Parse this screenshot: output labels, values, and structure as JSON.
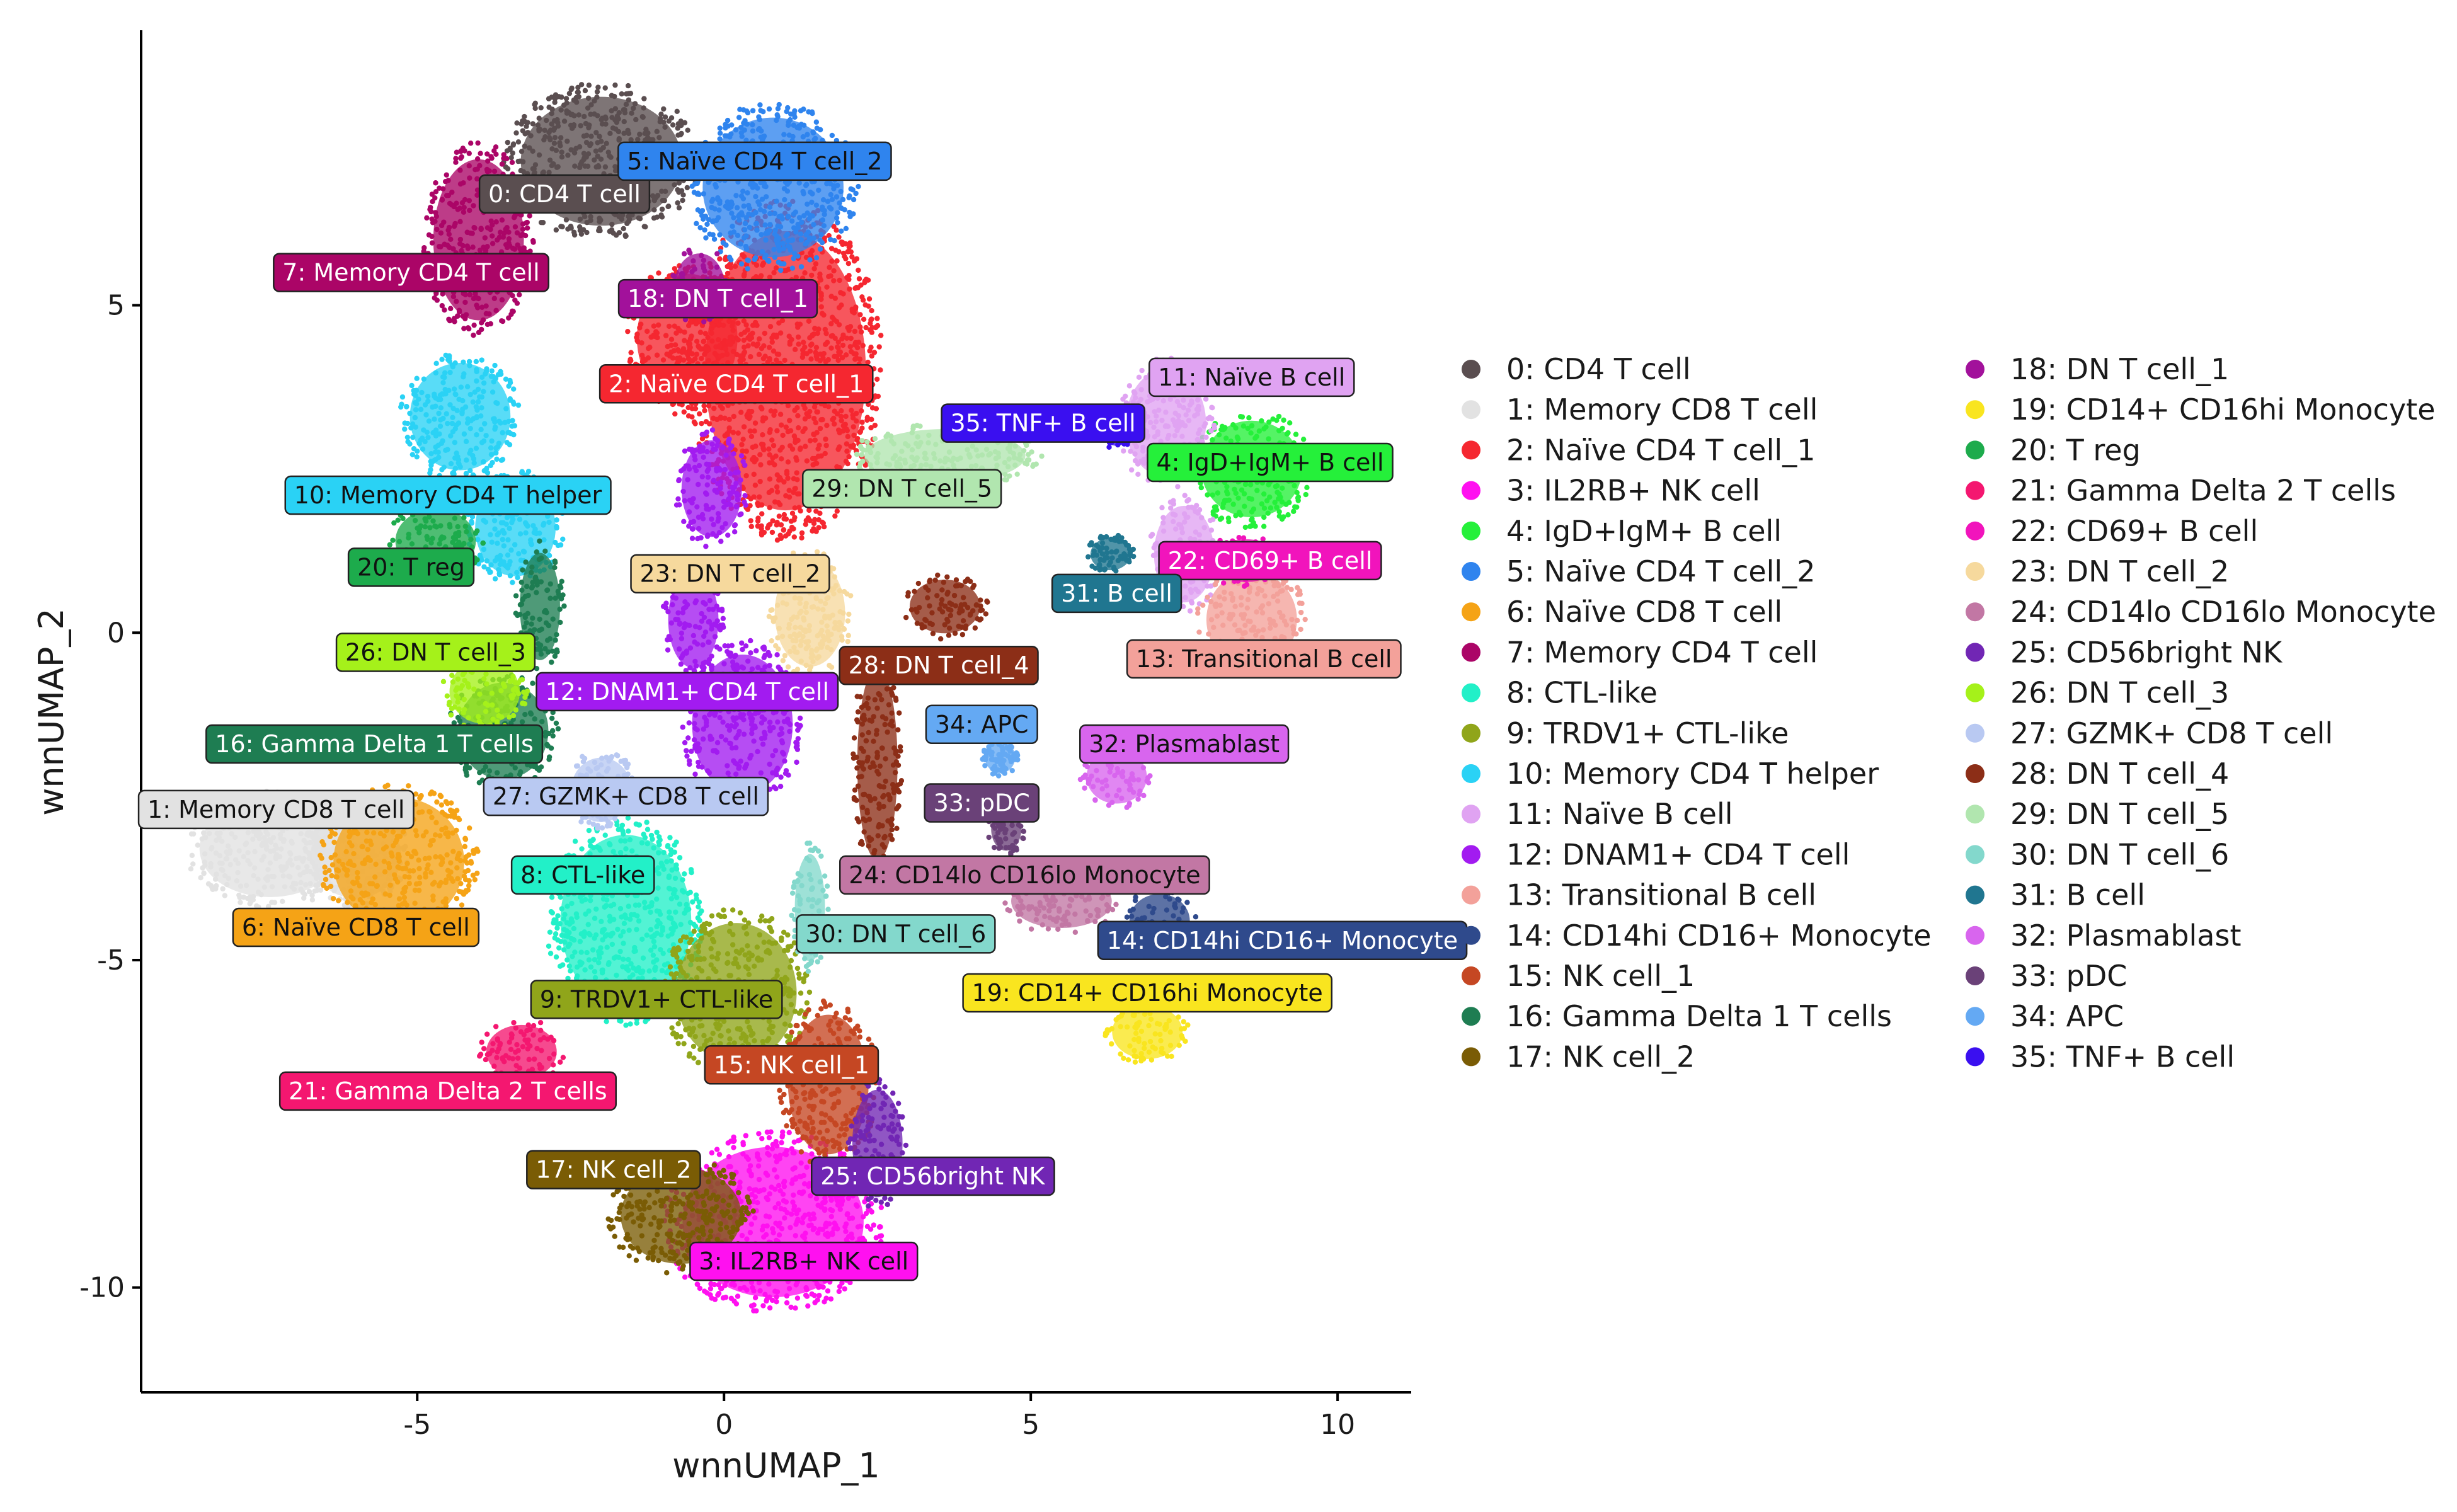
{
  "chart_data": {
    "type": "scatter",
    "xlabel": "wnnUMAP_1",
    "ylabel": "wnnUMAP_2",
    "xlim": [
      -9.5,
      11.2
    ],
    "ylim": [
      -11.6,
      9.2
    ],
    "xticks": [
      -5,
      0,
      5,
      10
    ],
    "yticks": [
      -10,
      -5,
      0,
      5
    ],
    "xtick_labels": [
      "-5",
      "0",
      "5",
      "10"
    ],
    "ytick_labels": [
      "-10",
      "-5",
      "0",
      "5"
    ],
    "legend_position": "right",
    "clusters": [
      {
        "id": 0,
        "name": "0: CD4 T cell",
        "color": "#5a4e50",
        "label_at": [
          -2.6,
          6.7
        ],
        "regions": [
          [
            -2.0,
            7.2,
            1.6,
            1.2
          ]
        ]
      },
      {
        "id": 1,
        "name": "1: Memory CD8 T cell",
        "color": "#e2e2e2",
        "label_at": [
          -7.3,
          -2.7
        ],
        "regions": [
          [
            -7.4,
            -3.3,
            1.4,
            0.9
          ],
          [
            -6.0,
            -3.4,
            0.9,
            0.8
          ]
        ]
      },
      {
        "id": 2,
        "name": "2: Naïve CD4 T cell_1",
        "color": "#f52730",
        "label_at": [
          0.2,
          3.8
        ],
        "regions": [
          [
            1.0,
            4.0,
            1.6,
            2.6
          ],
          [
            -0.6,
            4.5,
            1.0,
            1.2
          ]
        ]
      },
      {
        "id": 3,
        "name": "3: IL2RB+ NK cell",
        "color": "#ff10f0",
        "label_at": [
          1.3,
          -9.6
        ],
        "regions": [
          [
            0.8,
            -9.0,
            1.8,
            1.4
          ]
        ]
      },
      {
        "id": 4,
        "name": "4: IgD+IgM+ B cell",
        "color": "#25f03a",
        "label_at": [
          8.9,
          2.6
        ],
        "regions": [
          [
            8.6,
            2.5,
            1.0,
            0.9
          ]
        ]
      },
      {
        "id": 5,
        "name": "5: Naïve CD4 T cell_2",
        "color": "#2f84ee",
        "label_at": [
          0.5,
          7.2
        ],
        "regions": [
          [
            0.8,
            6.8,
            1.4,
            1.3
          ]
        ]
      },
      {
        "id": 6,
        "name": "6: Naïve CD8 T cell",
        "color": "#f5a316",
        "label_at": [
          -6.0,
          -4.5
        ],
        "regions": [
          [
            -5.3,
            -3.5,
            1.3,
            1.2
          ]
        ]
      },
      {
        "id": 7,
        "name": "7: Memory CD4 T cell",
        "color": "#ab0567",
        "label_at": [
          -5.1,
          5.5
        ],
        "regions": [
          [
            -4.0,
            6.0,
            0.9,
            1.5
          ]
        ]
      },
      {
        "id": 8,
        "name": "8: CTL-like",
        "color": "#22f0c8",
        "label_at": [
          -2.3,
          -3.7
        ],
        "regions": [
          [
            -1.6,
            -4.4,
            1.3,
            1.6
          ]
        ]
      },
      {
        "id": 9,
        "name": "9: TRDV1+ CTL-like",
        "color": "#90a51a",
        "label_at": [
          -1.1,
          -5.6
        ],
        "regions": [
          [
            0.2,
            -5.5,
            1.2,
            1.3
          ]
        ]
      },
      {
        "id": 10,
        "name": "10: Memory CD4 T helper",
        "color": "#2ad2f5",
        "label_at": [
          -4.5,
          2.1
        ],
        "regions": [
          [
            -4.3,
            3.3,
            1.0,
            1.0
          ],
          [
            -3.4,
            1.6,
            0.8,
            0.9
          ]
        ]
      },
      {
        "id": 11,
        "name": "11: Naïve B cell",
        "color": "#e0a3f2",
        "label_at": [
          8.6,
          3.9
        ],
        "regions": [
          [
            7.2,
            3.2,
            0.8,
            1.0
          ],
          [
            7.5,
            1.2,
            0.6,
            0.9
          ]
        ]
      },
      {
        "id": 12,
        "name": "12: DNAM1+ CD4 T cell",
        "color": "#a21bf0",
        "label_at": [
          -0.6,
          -0.9
        ],
        "regions": [
          [
            0.3,
            -1.4,
            1.0,
            1.3
          ],
          [
            -0.2,
            2.2,
            0.6,
            0.9
          ],
          [
            -0.5,
            0.2,
            0.5,
            0.9
          ]
        ]
      },
      {
        "id": 13,
        "name": "13: Transitional B cell",
        "color": "#f3a19a",
        "label_at": [
          8.8,
          -0.4
        ],
        "regions": [
          [
            8.6,
            0.2,
            0.9,
            0.9
          ]
        ]
      },
      {
        "id": 14,
        "name": "14: CD14hi CD16+ Monocyte",
        "color": "#2f4a8c",
        "label_at": [
          9.1,
          -4.7
        ],
        "regions": [
          [
            7.1,
            -4.4,
            0.6,
            0.5
          ]
        ]
      },
      {
        "id": 15,
        "name": "15: NK cell_1",
        "color": "#c54723",
        "label_at": [
          1.1,
          -6.6
        ],
        "regions": [
          [
            1.7,
            -6.9,
            0.8,
            1.3
          ]
        ]
      },
      {
        "id": 16,
        "name": "16: Gamma Delta 1 T cells",
        "color": "#1e7d52",
        "label_at": [
          -5.7,
          -1.7
        ],
        "regions": [
          [
            -3.6,
            -1.5,
            0.9,
            0.9
          ],
          [
            -3.0,
            0.4,
            0.4,
            1.0
          ]
        ]
      },
      {
        "id": 17,
        "name": "17: NK cell_2",
        "color": "#7a5c05",
        "label_at": [
          -1.8,
          -8.2
        ],
        "regions": [
          [
            -0.7,
            -8.9,
            1.2,
            0.9
          ]
        ]
      },
      {
        "id": 18,
        "name": "18: DN T cell_1",
        "color": "#a2119b",
        "label_at": [
          -0.1,
          5.1
        ],
        "regions": [
          [
            -0.4,
            5.3,
            0.5,
            0.6
          ]
        ]
      },
      {
        "id": 19,
        "name": "19: CD14+ CD16hi Monocyte",
        "color": "#f9e51f",
        "label_at": [
          6.9,
          -5.5
        ],
        "regions": [
          [
            6.9,
            -6.1,
            0.7,
            0.5
          ]
        ]
      },
      {
        "id": 20,
        "name": "20: T reg",
        "color": "#1dab4c",
        "label_at": [
          -5.1,
          1.0
        ],
        "regions": [
          [
            -4.7,
            1.4,
            0.8,
            0.6
          ]
        ]
      },
      {
        "id": 21,
        "name": "21: Gamma Delta 2 T cells",
        "color": "#f41770",
        "label_at": [
          -4.5,
          -7.0
        ],
        "regions": [
          [
            -3.3,
            -6.4,
            0.7,
            0.5
          ]
        ]
      },
      {
        "id": 22,
        "name": "22: CD69+ B cell",
        "color": "#f114bc",
        "label_at": [
          8.9,
          1.1
        ],
        "regions": [
          [
            8.5,
            1.1,
            0.7,
            0.4
          ]
        ]
      },
      {
        "id": 23,
        "name": "23: DN T cell_2",
        "color": "#f6d99d",
        "label_at": [
          0.1,
          0.9
        ],
        "regions": [
          [
            1.4,
            0.3,
            0.7,
            1.0
          ]
        ]
      },
      {
        "id": 24,
        "name": "24: CD14lo CD16lo Monocyte",
        "color": "#c277a4",
        "label_at": [
          4.9,
          -3.7
        ],
        "regions": [
          [
            5.5,
            -4.1,
            1.0,
            0.5
          ]
        ]
      },
      {
        "id": 25,
        "name": "25: CD56bright NK",
        "color": "#7126b4",
        "label_at": [
          3.4,
          -8.3
        ],
        "regions": [
          [
            2.5,
            -7.8,
            0.5,
            1.0
          ]
        ]
      },
      {
        "id": 26,
        "name": "26: DN T cell_3",
        "color": "#a5f11a",
        "label_at": [
          -4.7,
          -0.3
        ],
        "regions": [
          [
            -3.9,
            -0.9,
            0.7,
            0.6
          ]
        ]
      },
      {
        "id": 27,
        "name": "27: GZMK+ CD8 T cell",
        "color": "#b9c9f2",
        "label_at": [
          -1.6,
          -2.5
        ],
        "regions": [
          [
            -2.0,
            -2.4,
            0.6,
            0.6
          ]
        ]
      },
      {
        "id": 28,
        "name": "28: DN T cell_4",
        "color": "#8c2e17",
        "label_at": [
          3.5,
          -0.5
        ],
        "regions": [
          [
            2.5,
            -2.0,
            0.4,
            1.8
          ],
          [
            3.6,
            0.4,
            0.7,
            0.5
          ]
        ]
      },
      {
        "id": 29,
        "name": "29: DN T cell_5",
        "color": "#b1e6af",
        "label_at": [
          2.9,
          2.2
        ],
        "regions": [
          [
            3.6,
            2.7,
            1.6,
            0.5
          ]
        ]
      },
      {
        "id": 30,
        "name": "30: DN T cell_6",
        "color": "#83d8cc",
        "label_at": [
          2.8,
          -4.6
        ],
        "regions": [
          [
            1.4,
            -4.2,
            0.3,
            1.0
          ]
        ]
      },
      {
        "id": 31,
        "name": "31: B cell",
        "color": "#207690",
        "label_at": [
          6.4,
          0.6
        ],
        "regions": [
          [
            6.3,
            1.2,
            0.4,
            0.3
          ]
        ]
      },
      {
        "id": 32,
        "name": "32: Plasmablast",
        "color": "#d865ee",
        "label_at": [
          7.5,
          -1.7
        ],
        "regions": [
          [
            6.4,
            -2.2,
            0.6,
            0.5
          ]
        ]
      },
      {
        "id": 33,
        "name": "33: pDC",
        "color": "#6a4178",
        "label_at": [
          4.2,
          -2.6
        ],
        "regions": [
          [
            4.6,
            -3.0,
            0.3,
            0.4
          ]
        ]
      },
      {
        "id": 34,
        "name": "34: APC",
        "color": "#64a9f3",
        "label_at": [
          4.2,
          -1.4
        ],
        "regions": [
          [
            4.5,
            -1.9,
            0.3,
            0.3
          ]
        ]
      },
      {
        "id": 35,
        "name": "35: TNF+ B cell",
        "color": "#3a0ff0",
        "label_at": [
          5.2,
          3.2
        ],
        "regions": [
          [
            6.4,
            3.1,
            0.3,
            0.3
          ]
        ]
      }
    ]
  }
}
